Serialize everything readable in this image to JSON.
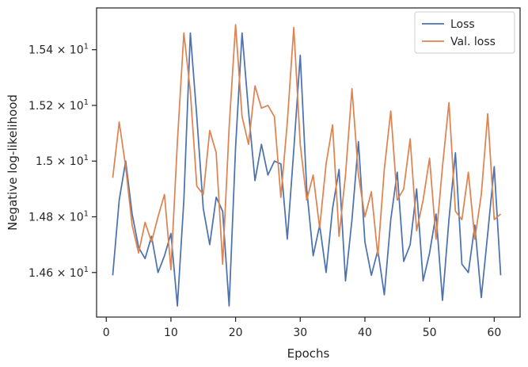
{
  "chart_data": {
    "type": "line",
    "xlabel": "Epochs",
    "ylabel": "Negative log-likelihood",
    "xlim": [
      -1.5,
      64
    ],
    "ylim": [
      14.44,
      15.55
    ],
    "xticks": [
      0,
      10,
      20,
      30,
      40,
      50,
      60
    ],
    "xtick_labels": [
      "0",
      "10",
      "20",
      "30",
      "40",
      "50",
      "60"
    ],
    "yticks": [
      14.6,
      14.8,
      15.0,
      15.2,
      15.4
    ],
    "ytick_labels": [
      {
        "base": "1.46",
        "sep": " × ",
        "exp_base": "10",
        "exp": "1"
      },
      {
        "base": "1.48",
        "sep": " × ",
        "exp_base": "10",
        "exp": "1"
      },
      {
        "base": "1.5",
        "sep": " × ",
        "exp_base": "10",
        "exp": "1"
      },
      {
        "base": "1.52",
        "sep": " × ",
        "exp_base": "10",
        "exp": "1"
      },
      {
        "base": "1.54",
        "sep": " × ",
        "exp_base": "10",
        "exp": "1"
      }
    ],
    "legend_position": "top-right",
    "grid": false,
    "x": [
      1,
      2,
      3,
      4,
      5,
      6,
      7,
      8,
      9,
      10,
      11,
      12,
      13,
      14,
      15,
      16,
      17,
      18,
      19,
      20,
      21,
      22,
      23,
      24,
      25,
      26,
      27,
      28,
      29,
      30,
      31,
      32,
      33,
      34,
      35,
      36,
      37,
      38,
      39,
      40,
      41,
      42,
      43,
      44,
      45,
      46,
      47,
      48,
      49,
      50,
      51,
      52,
      53,
      54,
      55,
      56,
      57,
      58,
      59,
      60,
      61
    ],
    "series": [
      {
        "name": "Loss",
        "color": "#4c72b0",
        "values": [
          14.59,
          14.86,
          15.0,
          14.81,
          14.69,
          14.65,
          14.73,
          14.6,
          14.66,
          14.74,
          14.48,
          14.86,
          15.46,
          15.16,
          14.83,
          14.7,
          14.87,
          14.82,
          14.48,
          15.05,
          15.46,
          15.18,
          14.93,
          15.06,
          14.95,
          15.0,
          14.99,
          14.72,
          15.04,
          15.38,
          14.9,
          14.66,
          14.77,
          14.6,
          14.83,
          14.97,
          14.57,
          14.79,
          15.07,
          14.71,
          14.59,
          14.68,
          14.52,
          14.79,
          14.96,
          14.64,
          14.7,
          14.9,
          14.57,
          14.67,
          14.81,
          14.5,
          14.79,
          15.03,
          14.63,
          14.6,
          14.77,
          14.51,
          14.74,
          14.98,
          14.59
        ]
      },
      {
        "name": "Val. loss",
        "color": "#dd8452",
        "values": [
          14.94,
          15.14,
          14.98,
          14.77,
          14.67,
          14.78,
          14.71,
          14.8,
          14.88,
          14.61,
          15.07,
          15.46,
          15.25,
          14.91,
          14.88,
          15.11,
          15.03,
          14.63,
          15.12,
          15.49,
          15.16,
          15.06,
          15.27,
          15.19,
          15.2,
          15.16,
          14.87,
          15.14,
          15.48,
          15.06,
          14.86,
          14.95,
          14.76,
          14.99,
          15.13,
          14.73,
          14.95,
          15.26,
          14.95,
          14.8,
          14.89,
          14.66,
          14.97,
          15.18,
          14.86,
          14.9,
          15.08,
          14.75,
          14.86,
          15.01,
          14.72,
          14.98,
          15.21,
          14.82,
          14.79,
          14.96,
          14.72,
          14.88,
          15.17,
          14.79,
          14.81
        ]
      }
    ]
  }
}
